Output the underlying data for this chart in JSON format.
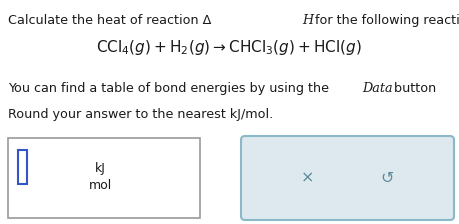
{
  "bg_color": "#ffffff",
  "text_color": "#1a1a1a",
  "line1_pre": "Calculate the heat of reaction Δ",
  "line1_H": "H",
  "line1_post": " for the following reaction:",
  "reaction": "$\\mathrm{CCl_4}(g) + \\mathrm{H_2}(g)\\rightarrow\\mathrm{CHCl_3}(g) + \\mathrm{HCl}(g)$",
  "line3_pre": "You can find a table of bond energies by using the ",
  "line3_italic": "Data",
  "line3_post": " button",
  "line4": "Round your answer to the nearest kJ/mol.",
  "unit_top": "kJ",
  "unit_bot": "mol",
  "cursor_color": "#3355cc",
  "input_border": "#999999",
  "btn_border": "#8ab8c8",
  "btn_bg": "#dde9ee",
  "btn_fg": "#5a8a9a",
  "fs_body": 9.2,
  "fs_rxn": 11.0,
  "fs_unit": 9.0,
  "fs_btn": 11.5
}
